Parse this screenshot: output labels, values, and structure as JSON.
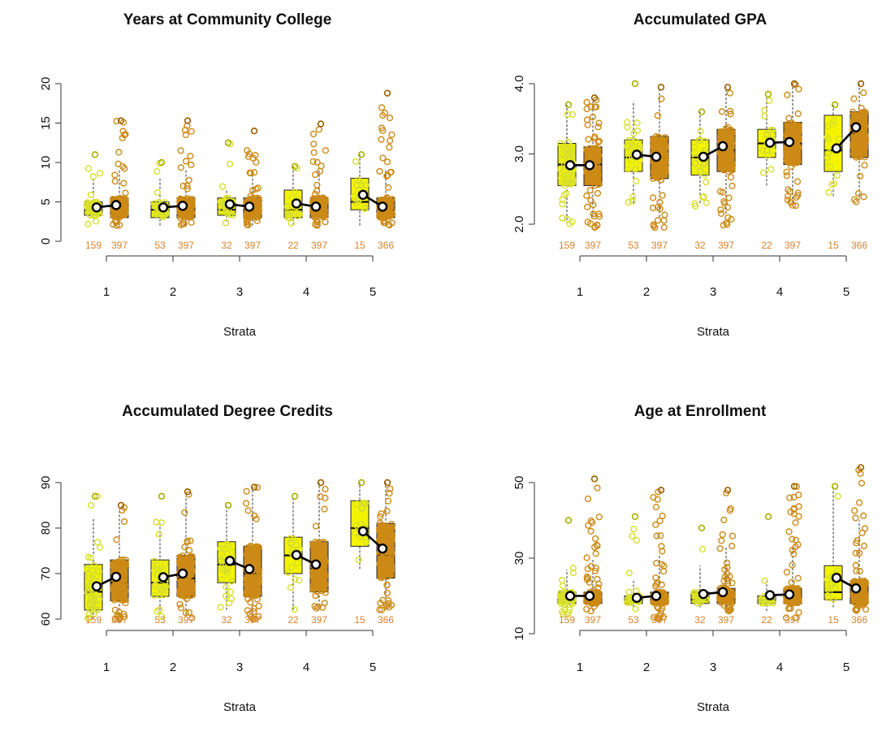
{
  "colors": {
    "group_a": "#d8df2a",
    "group_a_box": "#f4f400",
    "group_b": "#cc8a16",
    "count_text": "#d9822b",
    "mean_line": "#000000"
  },
  "chart_data": [
    {
      "type": "boxplot",
      "title": "Years at Community College",
      "xlabel": "Strata",
      "ylabel": "",
      "categories": [
        "1",
        "2",
        "3",
        "4",
        "5"
      ],
      "ylim": [
        0,
        20
      ],
      "yticks": [
        "0",
        "5",
        "10",
        "15",
        "20"
      ],
      "yticks_values": [
        0,
        5,
        10,
        15,
        20
      ],
      "counts_a": [
        "159",
        "53",
        "32",
        "22",
        "15"
      ],
      "counts_b": [
        "397",
        "397",
        "397",
        "397",
        "366"
      ],
      "series": [
        {
          "name": "",
          "box": [
            [
              2.5,
              3.3,
              4.0,
              5.0,
              8.0
            ],
            [
              2.0,
              3.0,
              4.0,
              5.0,
              8.0
            ],
            [
              2.5,
              3.3,
              4.0,
              5.5,
              6.5
            ],
            [
              2.0,
              3.0,
              4.0,
              6.5,
              9.5
            ],
            [
              2.0,
              4.0,
              5.0,
              8.0,
              11.0
            ]
          ],
          "means": [
            4.3,
            4.3,
            4.7,
            4.8,
            5.9
          ],
          "ymin": [
            2,
            2,
            2,
            2,
            2
          ],
          "ymax": [
            11,
            10,
            12.5,
            9.5,
            11
          ]
        },
        {
          "name": "",
          "box": [
            [
              2.0,
              3.0,
              4.0,
              5.5,
              9.0
            ],
            [
              2.0,
              3.0,
              4.0,
              5.5,
              9.0
            ],
            [
              2.0,
              3.0,
              4.0,
              5.5,
              9.0
            ],
            [
              2.0,
              3.0,
              4.0,
              5.5,
              9.0
            ],
            [
              2.0,
              3.0,
              4.0,
              5.5,
              9.0
            ]
          ],
          "means": [
            4.6,
            4.5,
            4.4,
            4.4,
            4.4
          ],
          "ymin": [
            2,
            2,
            2,
            2,
            2
          ],
          "ymax": [
            15.3,
            15.3,
            14,
            14.9,
            18.8
          ]
        }
      ]
    },
    {
      "type": "boxplot",
      "title": "Accumulated GPA",
      "xlabel": "Strata",
      "ylabel": "",
      "categories": [
        "1",
        "2",
        "3",
        "4",
        "5"
      ],
      "ylim": [
        1.85,
        4.1
      ],
      "yticks": [
        "2.0",
        "3.0",
        "4.0"
      ],
      "yticks_values": [
        2.0,
        3.0,
        4.0
      ],
      "counts_a": [
        "159",
        "53",
        "32",
        "22",
        "15"
      ],
      "counts_b": [
        "397",
        "397",
        "397",
        "397",
        "366"
      ],
      "series": [
        {
          "name": "",
          "box": [
            [
              2.0,
              2.55,
              2.85,
              3.15,
              3.7
            ],
            [
              2.3,
              2.75,
              2.95,
              3.2,
              3.75
            ],
            [
              2.3,
              2.7,
              2.95,
              3.2,
              3.6
            ],
            [
              2.55,
              2.95,
              3.15,
              3.35,
              3.8
            ],
            [
              2.4,
              2.75,
              3.05,
              3.55,
              3.7
            ]
          ],
          "means": [
            2.84,
            2.99,
            2.96,
            3.16,
            3.08
          ],
          "ymin": [
            1.95,
            2.3,
            2.25,
            2.55,
            2.4
          ],
          "ymax": [
            3.7,
            4.0,
            3.6,
            3.85,
            3.7
          ]
        },
        {
          "name": "",
          "box": [
            [
              2.1,
              2.55,
              2.85,
              3.1,
              3.75
            ],
            [
              2.1,
              2.65,
              2.95,
              3.25,
              3.95
            ],
            [
              2.15,
              2.75,
              3.05,
              3.35,
              3.95
            ],
            [
              2.3,
              2.85,
              3.15,
              3.45,
              4.0
            ],
            [
              2.35,
              2.95,
              3.3,
              3.6,
              4.0
            ]
          ],
          "means": [
            2.84,
            2.96,
            3.11,
            3.17,
            3.38
          ],
          "ymin": [
            1.9,
            1.95,
            1.95,
            2.25,
            2.3
          ],
          "ymax": [
            3.8,
            3.95,
            3.95,
            4.0,
            4.0
          ]
        }
      ]
    },
    {
      "type": "boxplot",
      "title": "Accumulated Degree Credits",
      "xlabel": "Strata",
      "ylabel": "",
      "categories": [
        "1",
        "2",
        "3",
        "4",
        "5"
      ],
      "ylim": [
        59,
        91
      ],
      "yticks": [
        "60",
        "70",
        "80",
        "90"
      ],
      "yticks_values": [
        60,
        70,
        80,
        90
      ],
      "counts_a": [
        "159",
        "53",
        "32",
        "22",
        "15"
      ],
      "counts_b": [
        "397",
        "397",
        "397",
        "397",
        "366"
      ],
      "series": [
        {
          "name": "",
          "box": [
            [
              60,
              62,
              66,
              72,
              82
            ],
            [
              61,
              65,
              68,
              73,
              81
            ],
            [
              62,
              68,
              72,
              77,
              85
            ],
            [
              62,
              70,
              74,
              78,
              87
            ],
            [
              71,
              76,
              80,
              86,
              90
            ]
          ],
          "means": [
            67.2,
            69.2,
            72.8,
            74.1,
            79.3
          ],
          "ymin": [
            60,
            60,
            62,
            62,
            71
          ],
          "ymax": [
            87,
            87,
            85,
            87,
            90
          ]
        },
        {
          "name": "",
          "box": [
            [
              61,
              64,
              68,
              73,
              84
            ],
            [
              61,
              65,
              69,
              74,
              87
            ],
            [
              61,
              65,
              70,
              76,
              89
            ],
            [
              62,
              66,
              71,
              77,
              90
            ],
            [
              62,
              69,
              74,
              81,
              90
            ]
          ],
          "means": [
            69.3,
            70.0,
            71.0,
            72.0,
            75.5
          ],
          "ymin": [
            60,
            60,
            60,
            62,
            62
          ],
          "ymax": [
            85,
            88,
            89,
            90,
            90
          ]
        }
      ]
    },
    {
      "type": "boxplot",
      "title": "Age at Enrollment",
      "xlabel": "Strata",
      "ylabel": "",
      "categories": [
        "1",
        "2",
        "3",
        "4",
        "5"
      ],
      "ylim": [
        10,
        60
      ],
      "yticks": [
        "10",
        "30",
        "50"
      ],
      "yticks_values": [
        10,
        30,
        50
      ],
      "counts_a": [
        "159",
        "53",
        "32",
        "22",
        "15"
      ],
      "counts_b": [
        "397",
        "397",
        "397",
        "397",
        "366"
      ],
      "series": [
        {
          "name": "",
          "box": [
            [
              16,
              18,
              19,
              21,
              27
            ],
            [
              17,
              18,
              19,
              20,
              24
            ],
            [
              17,
              18,
              19,
              21,
              28
            ],
            [
              16,
              18,
              19,
              20,
              24
            ],
            [
              17,
              19,
              21,
              28,
              49
            ]
          ],
          "means": [
            20.0,
            19.5,
            20.5,
            20.2,
            24.8
          ],
          "ymin": [
            15,
            16,
            17,
            16,
            17
          ],
          "ymax": [
            40,
            41,
            38,
            41,
            49
          ]
        },
        {
          "name": "",
          "box": [
            [
              16,
              18,
              19,
              21,
              30
            ],
            [
              16,
              18,
              19,
              21,
              31
            ],
            [
              16,
              18,
              19,
              22,
              33
            ],
            [
              16,
              18,
              19,
              22,
              33
            ],
            [
              16,
              18,
              20,
              24,
              40
            ]
          ],
          "means": [
            20.0,
            20.0,
            21.0,
            20.4,
            22.0
          ],
          "ymin": [
            16,
            14,
            16,
            14,
            16
          ],
          "ymax": [
            51,
            48,
            48,
            49,
            54
          ]
        }
      ]
    }
  ]
}
